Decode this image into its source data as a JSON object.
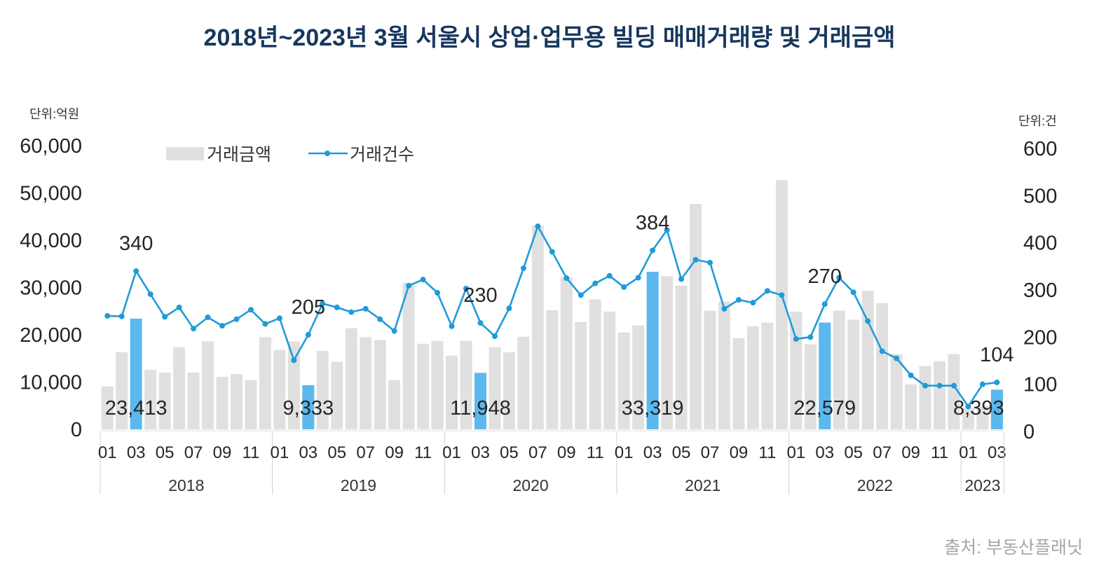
{
  "chart_data": {
    "type": "bar",
    "title": "2018년~2023년 3월 서울시 상업·업무용 빌딩 매매거래량 및 거래금액",
    "y_left": {
      "unit_label": "단위:억원",
      "min": 0,
      "max": 60000,
      "ticks": [
        {
          "value": 60000,
          "label": "60,000"
        },
        {
          "value": 50000,
          "label": "50,000"
        },
        {
          "value": 40000,
          "label": "40,000"
        },
        {
          "value": 30000,
          "label": "30,000"
        },
        {
          "value": 20000,
          "label": "20,000"
        },
        {
          "value": 10000,
          "label": "10,000"
        },
        {
          "value": 0,
          "label": "0"
        }
      ]
    },
    "y_right": {
      "unit_label": "단위:건",
      "min": 0,
      "max": 600,
      "ticks": [
        {
          "value": 600,
          "label": "600"
        },
        {
          "value": 500,
          "label": "500"
        },
        {
          "value": 400,
          "label": "400"
        },
        {
          "value": 300,
          "label": "300"
        },
        {
          "value": 200,
          "label": "200"
        },
        {
          "value": 100,
          "label": "100"
        },
        {
          "value": 0,
          "label": "0"
        }
      ]
    },
    "years": [
      {
        "label": "2018",
        "months": 12,
        "tick_labels": [
          "01",
          "03",
          "05",
          "07",
          "09",
          "11"
        ]
      },
      {
        "label": "2019",
        "months": 12,
        "tick_labels": [
          "01",
          "03",
          "05",
          "07",
          "09",
          "11"
        ]
      },
      {
        "label": "2020",
        "months": 12,
        "tick_labels": [
          "01",
          "03",
          "05",
          "07",
          "09",
          "11"
        ]
      },
      {
        "label": "2021",
        "months": 12,
        "tick_labels": [
          "01",
          "03",
          "05",
          "07",
          "09",
          "11"
        ]
      },
      {
        "label": "2022",
        "months": 12,
        "tick_labels": [
          "01",
          "03",
          "05",
          "07",
          "09",
          "11"
        ]
      },
      {
        "label": "2023",
        "months": 3,
        "tick_labels": [
          "01",
          "03"
        ]
      }
    ],
    "series": [
      {
        "name": "거래금액",
        "type": "bar",
        "color": "#e0e0e0",
        "highlight_color": "#5ab8ee",
        "values": [
          9100,
          16300,
          23413,
          12600,
          12000,
          17400,
          12000,
          18600,
          11100,
          11700,
          10400,
          19500,
          16800,
          18600,
          9333,
          16600,
          14300,
          21400,
          19500,
          18900,
          10400,
          31000,
          18100,
          18700,
          15600,
          18700,
          11948,
          17400,
          16300,
          19600,
          43100,
          25200,
          32200,
          22700,
          27500,
          24900,
          20500,
          22000,
          33319,
          32400,
          30400,
          47700,
          25100,
          27000,
          19300,
          21800,
          22600,
          52700,
          24900,
          18000,
          22579,
          25100,
          23200,
          29300,
          26700,
          15900,
          9500,
          13400,
          14400,
          15900,
          4500,
          4900,
          8393
        ]
      },
      {
        "name": "거래건수",
        "type": "line",
        "color": "#1f9bd9",
        "values": [
          245,
          244,
          340,
          291,
          243,
          263,
          218,
          242,
          224,
          238,
          258,
          228,
          240,
          151,
          205,
          271,
          263,
          253,
          260,
          238,
          213,
          309,
          322,
          294,
          223,
          303,
          230,
          202,
          261,
          346,
          435,
          381,
          325,
          289,
          314,
          330,
          306,
          326,
          384,
          427,
          323,
          364,
          358,
          260,
          279,
          273,
          298,
          289,
          196,
          200,
          270,
          326,
          295,
          234,
          170,
          155,
          119,
          97,
          97,
          97,
          53,
          100,
          104
        ]
      }
    ],
    "bar_labels": [
      {
        "index": 2,
        "text": "23,413"
      },
      {
        "index": 14,
        "text": "9,333"
      },
      {
        "index": 26,
        "text": "11,948"
      },
      {
        "index": 38,
        "text": "33,319"
      },
      {
        "index": 50,
        "text": "22,579"
      },
      {
        "index": 62,
        "text": "8,393"
      }
    ],
    "line_labels": [
      {
        "index": 2,
        "text": "340"
      },
      {
        "index": 14,
        "text": "205"
      },
      {
        "index": 26,
        "text": "230"
      },
      {
        "index": 38,
        "text": "384"
      },
      {
        "index": 50,
        "text": "270"
      },
      {
        "index": 62,
        "text": "104"
      }
    ]
  },
  "source": "출처: 부동산플래닛",
  "colors": {
    "title": "#17375e"
  }
}
